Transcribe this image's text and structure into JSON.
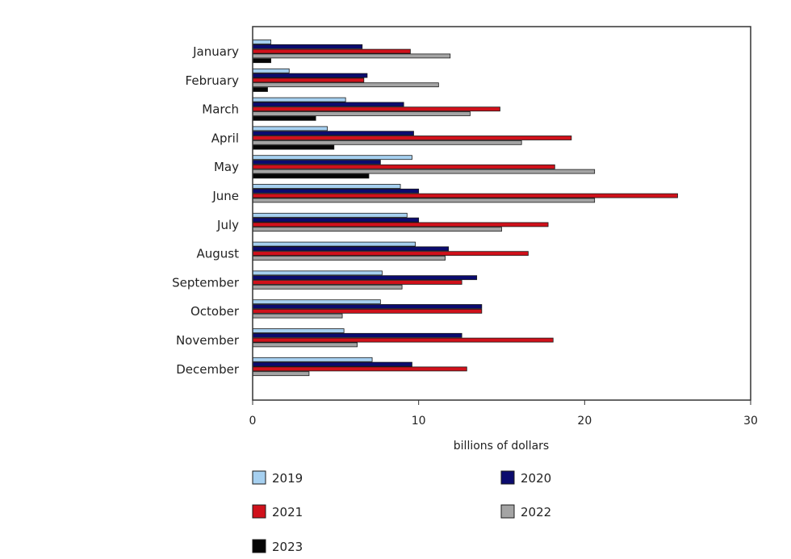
{
  "chart_data": {
    "type": "bar",
    "orientation": "horizontal",
    "categories": [
      "January",
      "February",
      "March",
      "April",
      "May",
      "June",
      "July",
      "August",
      "September",
      "October",
      "November",
      "December"
    ],
    "series": [
      {
        "name": "2019",
        "color": "#a6d0f0",
        "values": [
          1.1,
          2.2,
          5.6,
          4.5,
          9.6,
          8.9,
          9.3,
          9.8,
          7.8,
          7.7,
          5.5,
          7.2
        ]
      },
      {
        "name": "2020",
        "color": "#0b0b6e",
        "values": [
          6.6,
          6.9,
          9.1,
          9.7,
          7.7,
          10.0,
          10.0,
          11.8,
          13.5,
          13.8,
          12.6,
          9.6
        ]
      },
      {
        "name": "2021",
        "color": "#d0111b",
        "values": [
          9.5,
          6.7,
          14.9,
          19.2,
          18.2,
          25.6,
          17.8,
          16.6,
          12.6,
          13.8,
          18.1,
          12.9
        ]
      },
      {
        "name": "2022",
        "color": "#a4a4a4",
        "values": [
          11.9,
          11.2,
          13.1,
          16.2,
          20.6,
          20.6,
          15.0,
          11.6,
          9.0,
          5.4,
          6.3,
          3.4
        ]
      },
      {
        "name": "2023",
        "color": "#050505",
        "values": [
          1.1,
          0.9,
          3.8,
          4.9,
          7.0,
          null,
          null,
          null,
          null,
          null,
          null,
          null
        ]
      }
    ],
    "xlabel": "billions of dollars",
    "xlim": [
      0,
      30
    ],
    "xticks": [
      0,
      10,
      20,
      30
    ],
    "grid": false,
    "legend_position": "bottom"
  }
}
